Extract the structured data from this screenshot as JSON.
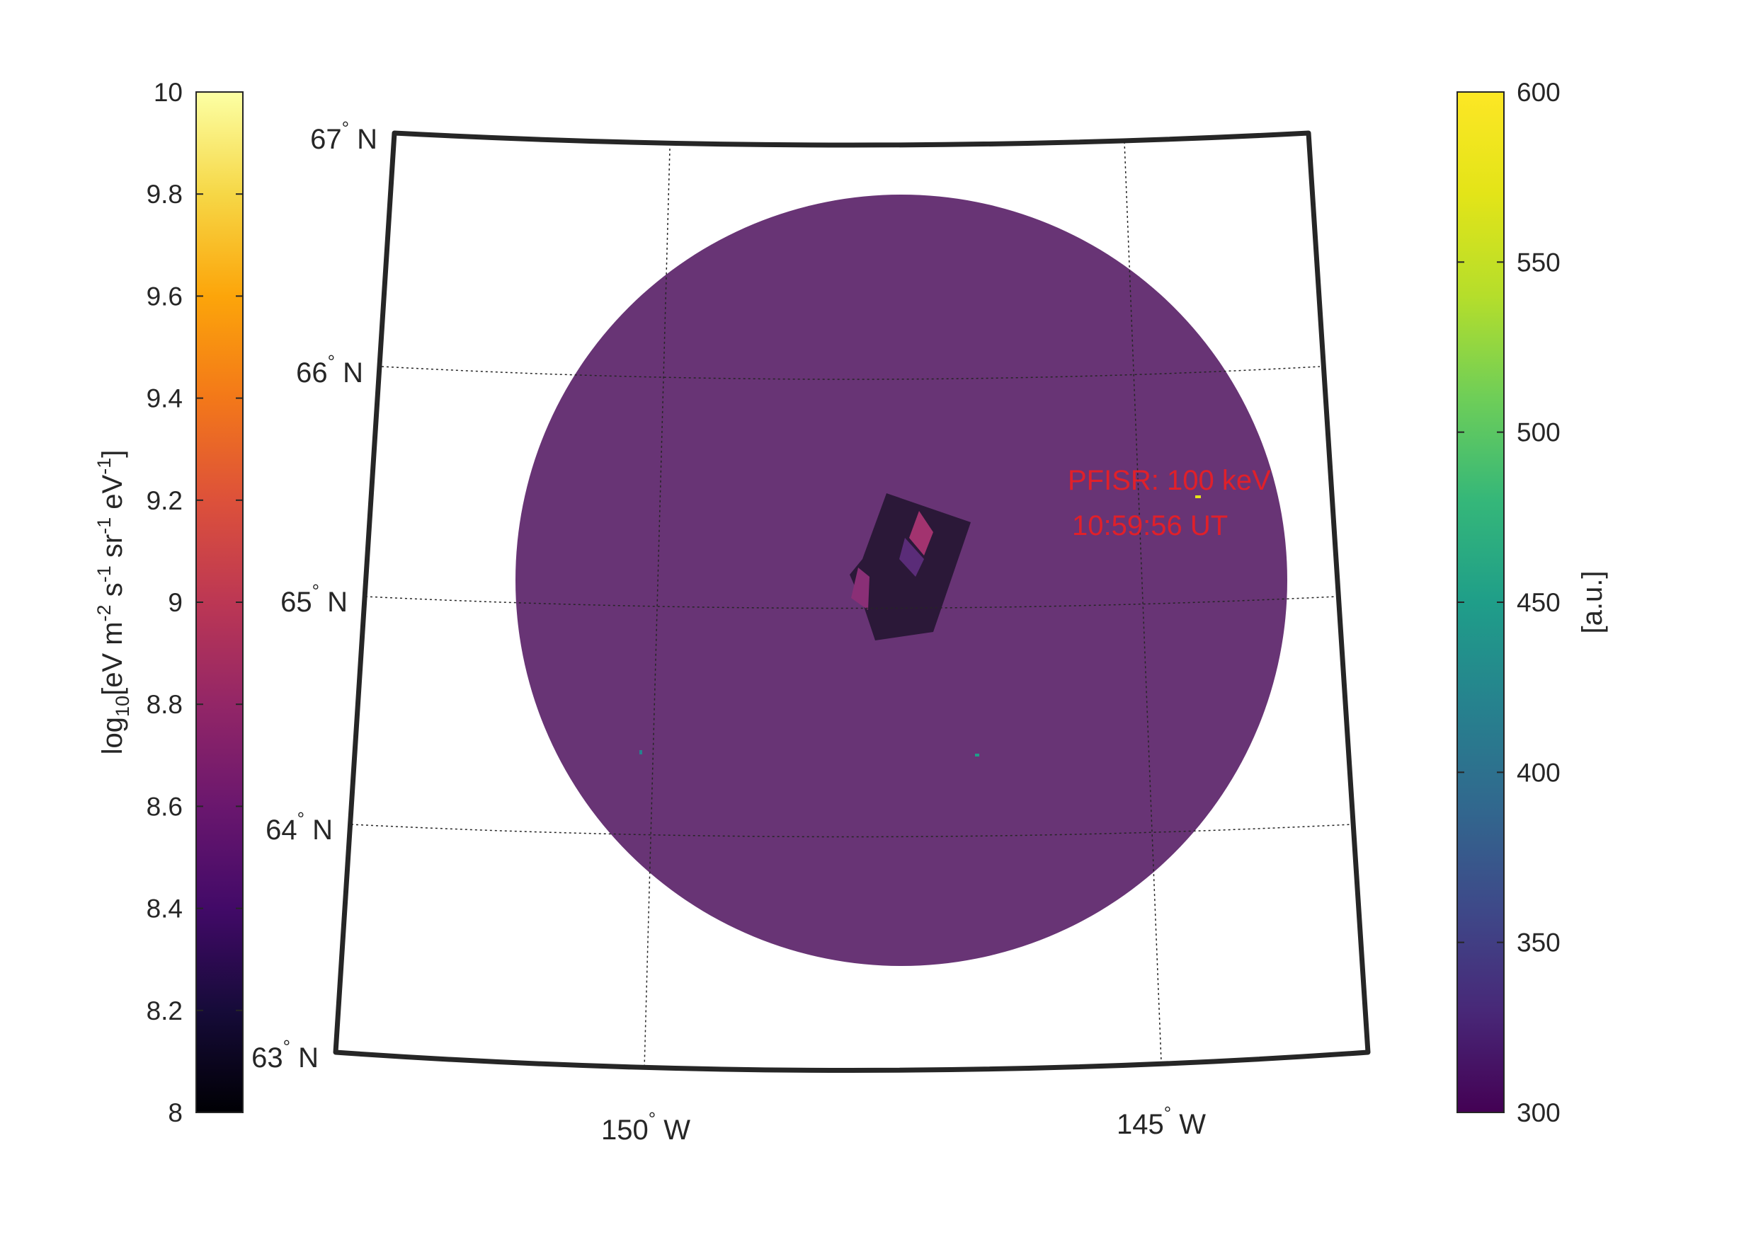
{
  "left_colorbar": {
    "range": [
      8,
      10
    ],
    "ticks": [
      "10",
      "9.8",
      "9.6",
      "9.4",
      "9.2",
      "9",
      "8.8",
      "8.6",
      "8.4",
      "8.2",
      "8"
    ],
    "label_main": "log",
    "label_sub": "10",
    "label_rest": "[eV m",
    "label_exp1": "-2",
    "label_s": " s",
    "label_exp2": "-1",
    "label_sr": " sr",
    "label_exp3": "-1",
    "label_ev": " eV",
    "label_exp4": "-1",
    "label_end": "]",
    "colormap": "inferno"
  },
  "right_colorbar": {
    "range": [
      300,
      600
    ],
    "ticks": [
      "600",
      "550",
      "500",
      "450",
      "400",
      "350",
      "300"
    ],
    "label": "[a.u.]",
    "colormap": "viridis"
  },
  "map": {
    "lat_labels": [
      {
        "deg": "67",
        "hem": " N"
      },
      {
        "deg": "66",
        "hem": " N"
      },
      {
        "deg": "65",
        "hem": " N"
      },
      {
        "deg": "64",
        "hem": " N"
      },
      {
        "deg": "63",
        "hem": " N"
      }
    ],
    "lon_labels": [
      {
        "deg": "150",
        "hem": " W"
      },
      {
        "deg": "145",
        "hem": " W"
      }
    ],
    "degree_symbol": "°",
    "disk_color": "#683475",
    "frame_color": "#262626"
  },
  "annotation": {
    "line1": "PFISR: 100 keV",
    "line2": "10:59:56 UT",
    "color": "#e0202a"
  }
}
